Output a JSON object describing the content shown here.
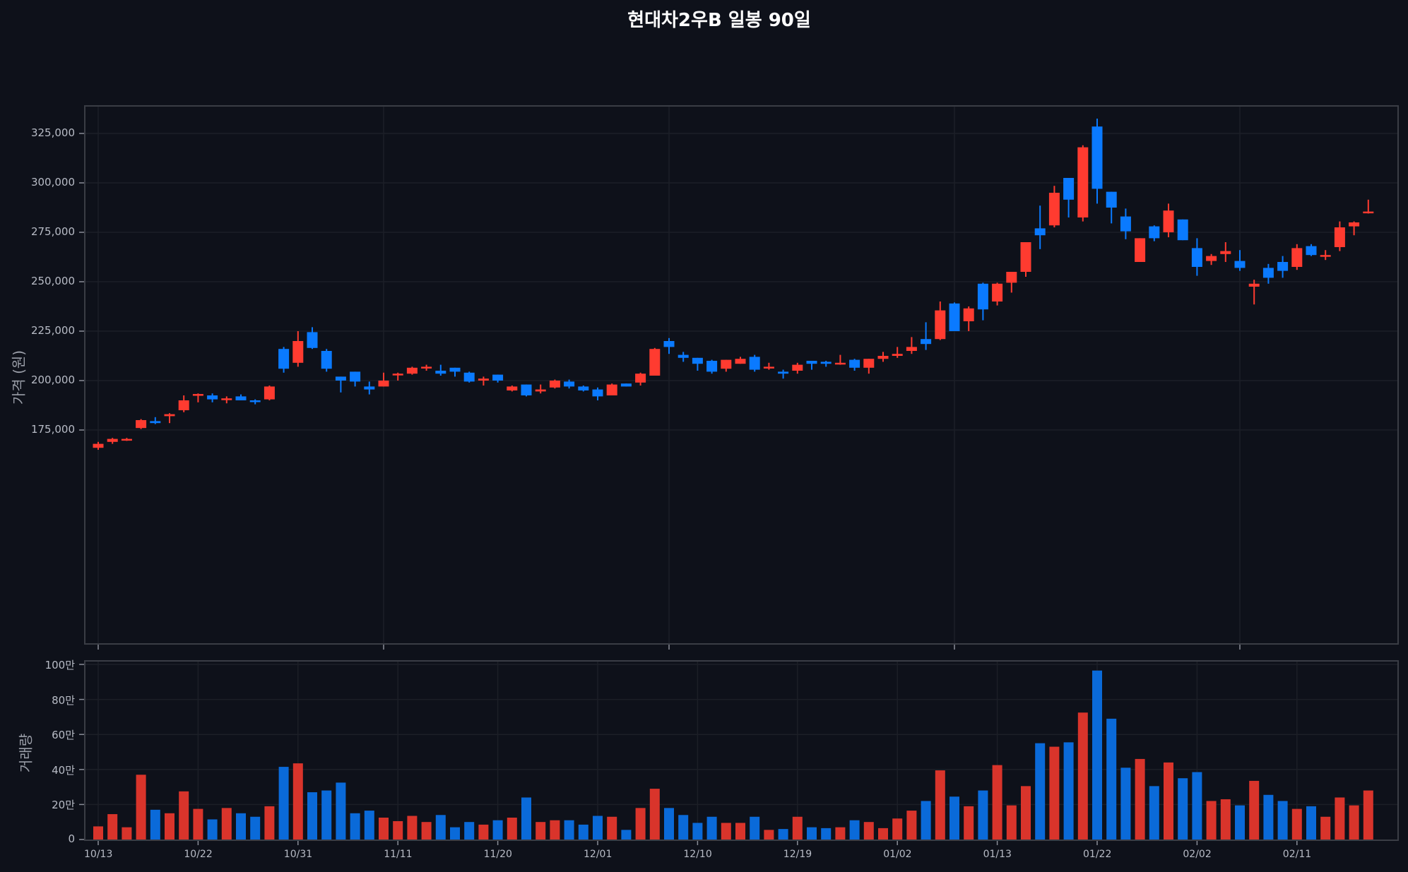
{
  "title": "현대차2우B 일봉 90일",
  "colors": {
    "background": "#0e111a",
    "up": "#ff3b30",
    "down": "#0a7aff",
    "vol_up": "#d9342b",
    "vol_down": "#0a6ad9",
    "grid": "#1c1f27",
    "axis": "#3a3d45"
  },
  "price_panel": {
    "ylabel": "가격 (원)",
    "yticks": [
      "325,000",
      "300,000",
      "275,000",
      "250,000",
      "225,000",
      "200,000",
      "175,000"
    ]
  },
  "volume_panel": {
    "ylabel": "거래량",
    "yticks": [
      "100만",
      "80만",
      "60만",
      "40만",
      "20만",
      "0"
    ]
  },
  "xticks": [
    "10/13",
    "10/22",
    "10/31",
    "11/11",
    "11/20",
    "12/01",
    "12/10",
    "12/19",
    "01/02",
    "01/13",
    "01/22",
    "02/02",
    "02/11"
  ],
  "chart_data": [
    {
      "type": "candlestick",
      "title": "현대차2우B 일봉 90일",
      "ylabel": "가격 (원)",
      "ylim": [
        158000,
        342000
      ],
      "unit": "thousand KRW",
      "ohlc": [
        [
          166,
          168,
          169,
          165
        ],
        [
          169,
          170.5,
          171,
          168
        ],
        [
          170,
          170.5,
          171,
          169.5
        ],
        [
          176,
          180,
          180.5,
          175.5
        ],
        [
          179.5,
          178.5,
          181.5,
          178
        ],
        [
          182,
          183,
          183.5,
          178.5
        ],
        [
          185,
          190,
          192.5,
          184
        ],
        [
          193,
          193.2,
          193.5,
          189
        ],
        [
          192.5,
          190.5,
          193.5,
          189
        ],
        [
          190.5,
          191,
          192,
          188.5
        ],
        [
          192,
          190,
          193,
          190
        ],
        [
          190,
          189.5,
          190.5,
          188
        ],
        [
          190.5,
          197,
          197.5,
          190
        ],
        [
          216,
          206,
          217,
          204
        ],
        [
          209,
          220,
          225,
          207
        ],
        [
          224.5,
          216.5,
          227,
          216
        ],
        [
          215,
          206,
          216,
          204.5
        ],
        [
          202,
          200,
          202,
          194
        ],
        [
          204.5,
          199.5,
          204.5,
          197
        ],
        [
          197,
          195.5,
          199.5,
          193
        ],
        [
          197,
          200,
          204,
          197
        ],
        [
          203,
          203.5,
          204,
          200
        ],
        [
          203.5,
          206.5,
          207,
          203
        ],
        [
          206.5,
          207,
          208,
          205
        ],
        [
          205,
          203.5,
          208,
          202.5
        ],
        [
          206.5,
          204.5,
          206.5,
          202
        ],
        [
          204,
          199.5,
          204.5,
          199
        ],
        [
          200,
          201,
          202,
          197.5
        ],
        [
          203,
          200,
          203,
          199
        ],
        [
          195,
          197,
          197.5,
          194.5
        ],
        [
          198,
          192.5,
          198,
          192
        ],
        [
          194.5,
          195.5,
          198,
          193.5
        ],
        [
          196.5,
          200,
          200.5,
          196
        ],
        [
          199.5,
          197,
          200.5,
          196
        ],
        [
          197,
          195,
          197.5,
          194.5
        ],
        [
          195.5,
          192,
          196.5,
          190
        ],
        [
          192.5,
          198,
          198.5,
          192.5
        ],
        [
          198.5,
          197,
          198.5,
          197
        ],
        [
          199,
          203.5,
          204,
          197.5
        ],
        [
          202.5,
          216,
          216.5,
          202.5
        ],
        [
          220,
          217,
          221.5,
          213.5
        ],
        [
          213,
          211.5,
          214.5,
          209.5
        ],
        [
          211.5,
          208.5,
          211.5,
          205
        ],
        [
          210,
          204.5,
          210.5,
          203.5
        ],
        [
          206,
          210.5,
          210.5,
          204.5
        ],
        [
          208.5,
          211,
          212,
          208.5
        ],
        [
          212,
          205.5,
          213,
          204.5
        ],
        [
          206.5,
          207,
          209,
          205.5
        ],
        [
          204.5,
          203.5,
          205.5,
          201
        ],
        [
          205,
          208,
          209,
          203.5
        ],
        [
          210,
          208.5,
          210,
          205.5
        ],
        [
          209.5,
          208.5,
          210,
          207
        ],
        [
          208.5,
          209,
          213,
          208
        ],
        [
          210.5,
          206.5,
          211,
          205
        ],
        [
          206.5,
          211,
          211,
          203.5
        ],
        [
          211,
          212.5,
          214.5,
          209.5
        ],
        [
          212.5,
          213.5,
          217,
          211.5
        ],
        [
          215,
          217,
          222,
          213.5
        ],
        [
          221,
          218.5,
          229.5,
          215.5
        ],
        [
          221,
          235.5,
          240,
          220.5
        ],
        [
          239,
          225,
          239.5,
          225
        ],
        [
          230,
          236.5,
          237.5,
          225
        ],
        [
          249,
          236,
          249.5,
          230.5
        ],
        [
          240,
          249,
          249.5,
          238
        ],
        [
          249.5,
          255,
          255,
          244.5
        ],
        [
          255,
          270,
          270,
          252.5
        ],
        [
          277,
          273.5,
          288.5,
          266.5
        ],
        [
          278.5,
          295,
          298.5,
          277.5
        ],
        [
          302.5,
          291.5,
          302.5,
          282.5
        ],
        [
          282.5,
          318,
          319,
          280.5
        ],
        [
          328.5,
          297,
          332.5,
          289.5
        ],
        [
          295.5,
          287.5,
          295.5,
          279.5
        ],
        [
          283,
          275.5,
          287,
          271.5
        ],
        [
          260,
          272,
          272,
          260
        ],
        [
          278,
          272,
          278.5,
          270.5
        ],
        [
          275,
          286,
          289.5,
          272.5
        ],
        [
          281.5,
          271,
          281.5,
          271
        ],
        [
          267,
          257.5,
          272,
          253
        ],
        [
          260.5,
          263,
          264,
          258.5
        ],
        [
          264,
          265.5,
          270,
          260
        ],
        [
          260.5,
          257,
          266,
          255.5
        ],
        [
          247.5,
          249,
          251,
          238.5
        ],
        [
          257,
          252,
          259,
          249
        ],
        [
          260,
          255.5,
          263,
          252
        ],
        [
          257.5,
          267,
          269,
          256
        ],
        [
          268,
          263.5,
          269,
          263
        ],
        [
          263,
          263.5,
          266,
          261
        ],
        [
          267.5,
          277.5,
          280.5,
          265.5
        ],
        [
          278,
          280,
          280.5,
          273.5
        ],
        [
          285,
          285.5,
          291.5,
          284.5
        ]
      ]
    },
    {
      "type": "bar",
      "ylabel": "거래량",
      "ylim": [
        0,
        1000000
      ],
      "unit": "만",
      "values": [
        7.5,
        14.5,
        7,
        37,
        17,
        15,
        27.5,
        17.5,
        11.5,
        18,
        15,
        13,
        19,
        41.5,
        43.5,
        27,
        28,
        32.5,
        15,
        16.5,
        12.5,
        10.5,
        13.5,
        10,
        14,
        7,
        10,
        8.5,
        11,
        12.5,
        24,
        10,
        11,
        11,
        8.5,
        13.5,
        13,
        5.5,
        18,
        29,
        18,
        14,
        9.5,
        13,
        9.5,
        9.5,
        13,
        5.5,
        6,
        13,
        7,
        6.5,
        7,
        11,
        10,
        6.5,
        12,
        16.5,
        22,
        39.5,
        24.5,
        19,
        28,
        42.5,
        19.5,
        30.5,
        55,
        53,
        55.5,
        72.5,
        96.5,
        69,
        41,
        46,
        30.5,
        44,
        35,
        38.5,
        22,
        23,
        19.5,
        33.5,
        25.5,
        22,
        17.5,
        19,
        13,
        24,
        19.5,
        28
      ]
    }
  ]
}
